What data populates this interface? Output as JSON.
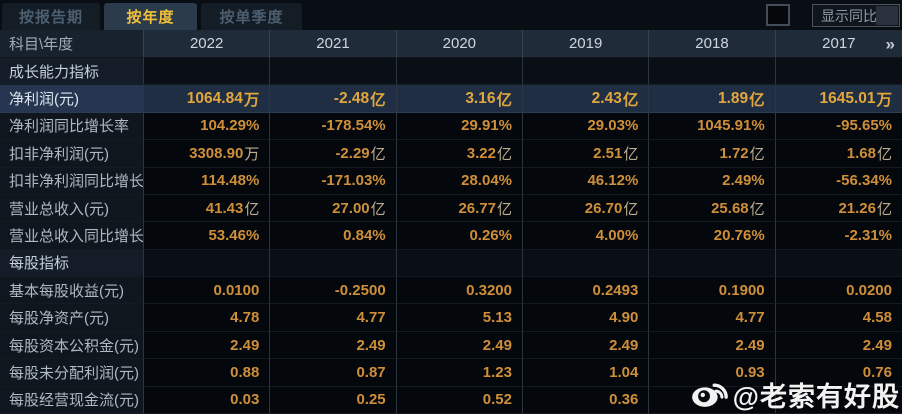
{
  "tabs": {
    "report_period": "按报告期",
    "annual": "按年度",
    "single_quarter": "按单季度",
    "active_tab": "按年度"
  },
  "controls": {
    "show_yoy_label": "显示同比",
    "checkbox_checked": false
  },
  "table": {
    "corner_label": "科目\\年度",
    "years": [
      "2022",
      "2021",
      "2020",
      "2019",
      "2018",
      "2017"
    ],
    "more_icon": "»",
    "rows": [
      {
        "type": "section",
        "label": "成长能力指标",
        "values": [
          "",
          "",
          "",
          "",
          "",
          ""
        ]
      },
      {
        "type": "data",
        "highlight": true,
        "label": "净利润(元)",
        "values": [
          "1064.84万",
          "-2.48亿",
          "3.16亿",
          "2.43亿",
          "1.89亿",
          "1645.01万"
        ]
      },
      {
        "type": "data",
        "label": "净利润同比增长率",
        "values": [
          "104.29%",
          "-178.54%",
          "29.91%",
          "29.03%",
          "1045.91%",
          "-95.65%"
        ]
      },
      {
        "type": "data",
        "label": "扣非净利润(元)",
        "values": [
          "3308.90万",
          "-2.29亿",
          "3.22亿",
          "2.51亿",
          "1.72亿",
          "1.68亿"
        ]
      },
      {
        "type": "data",
        "label": "扣非净利润同比增长率",
        "values": [
          "114.48%",
          "-171.03%",
          "28.04%",
          "46.12%",
          "2.49%",
          "-56.34%"
        ]
      },
      {
        "type": "data",
        "label": "营业总收入(元)",
        "values": [
          "41.43亿",
          "27.00亿",
          "26.77亿",
          "26.70亿",
          "25.68亿",
          "21.26亿"
        ]
      },
      {
        "type": "data",
        "label": "营业总收入同比增长率",
        "values": [
          "53.46%",
          "0.84%",
          "0.26%",
          "4.00%",
          "20.76%",
          "-2.31%"
        ]
      },
      {
        "type": "section",
        "label": "每股指标",
        "values": [
          "",
          "",
          "",
          "",
          "",
          ""
        ]
      },
      {
        "type": "data",
        "label": "基本每股收益(元)",
        "values": [
          "0.0100",
          "-0.2500",
          "0.3200",
          "0.2493",
          "0.1900",
          "0.0200"
        ]
      },
      {
        "type": "data",
        "label": "每股净资产(元)",
        "values": [
          "4.78",
          "4.77",
          "5.13",
          "4.90",
          "4.77",
          "4.58"
        ]
      },
      {
        "type": "data",
        "label": "每股资本公积金(元)",
        "values": [
          "2.49",
          "2.49",
          "2.49",
          "2.49",
          "2.49",
          "2.49"
        ]
      },
      {
        "type": "data",
        "label": "每股未分配利润(元)",
        "values": [
          "0.88",
          "0.87",
          "1.23",
          "1.04",
          "0.93",
          "0.76"
        ]
      },
      {
        "type": "data",
        "label": "每股经营现金流(元)",
        "values": [
          "0.03",
          "0.25",
          "0.52",
          "0.36",
          "",
          ""
        ]
      }
    ]
  },
  "watermark": {
    "text": "@老索有好股",
    "icon": "weibo-icon"
  },
  "colors": {
    "background": "#070b10",
    "tab_active_bg": "#2b3b4c",
    "accent_gold": "#f2c13a",
    "value_orange": "#cf8f3a",
    "highlight_value": "#e1a73e",
    "highlight_row_bg": "#202e44",
    "header_bg": "#202b39"
  }
}
